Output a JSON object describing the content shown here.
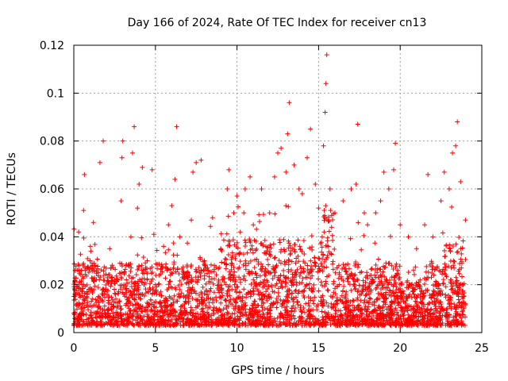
{
  "chart_data": {
    "type": "scatter",
    "title": "Day 166 of 2024, Rate Of TEC Index for receiver cn13",
    "xlabel": "GPS time / hours",
    "ylabel": "ROTI / TECUs",
    "xlim": [
      0,
      25
    ],
    "ylim": [
      0,
      0.12
    ],
    "xticks": [
      0,
      5,
      10,
      15,
      20,
      25
    ],
    "xtick_labels": [
      "0",
      "5",
      "10",
      "15",
      "20",
      "25"
    ],
    "yticks": [
      0,
      0.02,
      0.04,
      0.06,
      0.08,
      0.1,
      0.12
    ],
    "ytick_labels": [
      "0",
      "0.02",
      "0.04",
      "0.06",
      "0.08",
      "0.1",
      "0.12"
    ],
    "grid": true,
    "marker": "+",
    "color": "#ff0000",
    "series": [
      {
        "name": "ROTI",
        "note": "dense cloud of ROTI samples 0-24 h, mostly 0.003-0.04 TECU/s",
        "points": [
          [
            0.0,
            0.008
          ],
          [
            0.2,
            0.012
          ],
          [
            0.3,
            0.042
          ],
          [
            0.5,
            0.02
          ],
          [
            0.6,
            0.051
          ],
          [
            0.65,
            0.066
          ],
          [
            0.8,
            0.015
          ],
          [
            1.0,
            0.03
          ],
          [
            1.2,
            0.046
          ],
          [
            1.5,
            0.025
          ],
          [
            1.6,
            0.071
          ],
          [
            1.8,
            0.08
          ],
          [
            2.0,
            0.018
          ],
          [
            2.2,
            0.035
          ],
          [
            2.5,
            0.022
          ],
          [
            2.9,
            0.055
          ],
          [
            2.95,
            0.073
          ],
          [
            3.0,
            0.08
          ],
          [
            3.2,
            0.028
          ],
          [
            3.5,
            0.04
          ],
          [
            3.6,
            0.075
          ],
          [
            3.7,
            0.086
          ],
          [
            3.9,
            0.052
          ],
          [
            4.0,
            0.062
          ],
          [
            4.2,
            0.069
          ],
          [
            4.5,
            0.03
          ],
          [
            4.8,
            0.068
          ],
          [
            5.0,
            0.02
          ],
          [
            5.5,
            0.036
          ],
          [
            5.8,
            0.045
          ],
          [
            6.0,
            0.053
          ],
          [
            6.2,
            0.064
          ],
          [
            6.3,
            0.086
          ],
          [
            6.5,
            0.04
          ],
          [
            7.0,
            0.025
          ],
          [
            7.2,
            0.047
          ],
          [
            7.3,
            0.067
          ],
          [
            7.5,
            0.071
          ],
          [
            7.8,
            0.072
          ],
          [
            8.0,
            0.03
          ],
          [
            8.5,
            0.048
          ],
          [
            9.0,
            0.035
          ],
          [
            9.4,
            0.06
          ],
          [
            9.5,
            0.068
          ],
          [
            9.8,
            0.05
          ],
          [
            10.0,
            0.057
          ],
          [
            10.2,
            0.042
          ],
          [
            10.5,
            0.06
          ],
          [
            10.8,
            0.065
          ],
          [
            11.0,
            0.045
          ],
          [
            11.5,
            0.06
          ],
          [
            12.0,
            0.05
          ],
          [
            12.3,
            0.065
          ],
          [
            12.5,
            0.075
          ],
          [
            12.7,
            0.077
          ],
          [
            13.0,
            0.067
          ],
          [
            13.1,
            0.083
          ],
          [
            13.2,
            0.096
          ],
          [
            13.5,
            0.07
          ],
          [
            13.8,
            0.06
          ],
          [
            14.0,
            0.058
          ],
          [
            14.3,
            0.073
          ],
          [
            14.5,
            0.085
          ],
          [
            14.8,
            0.062
          ],
          [
            15.0,
            0.052
          ],
          [
            15.3,
            0.078
          ],
          [
            15.4,
            0.092
          ],
          [
            15.45,
            0.104
          ],
          [
            15.5,
            0.116
          ],
          [
            15.7,
            0.06
          ],
          [
            16.0,
            0.05
          ],
          [
            16.5,
            0.055
          ],
          [
            17.0,
            0.06
          ],
          [
            17.3,
            0.062
          ],
          [
            17.4,
            0.087
          ],
          [
            17.8,
            0.05
          ],
          [
            18.0,
            0.045
          ],
          [
            18.5,
            0.05
          ],
          [
            18.8,
            0.055
          ],
          [
            19.0,
            0.067
          ],
          [
            19.3,
            0.06
          ],
          [
            19.6,
            0.068
          ],
          [
            19.7,
            0.079
          ],
          [
            20.0,
            0.045
          ],
          [
            20.5,
            0.04
          ],
          [
            21.0,
            0.035
          ],
          [
            21.5,
            0.045
          ],
          [
            21.7,
            0.066
          ],
          [
            22.0,
            0.04
          ],
          [
            22.5,
            0.055
          ],
          [
            22.7,
            0.067
          ],
          [
            23.0,
            0.06
          ],
          [
            23.2,
            0.075
          ],
          [
            23.4,
            0.078
          ],
          [
            23.5,
            0.088
          ],
          [
            23.7,
            0.063
          ],
          [
            24.0,
            0.047
          ]
        ]
      }
    ]
  }
}
